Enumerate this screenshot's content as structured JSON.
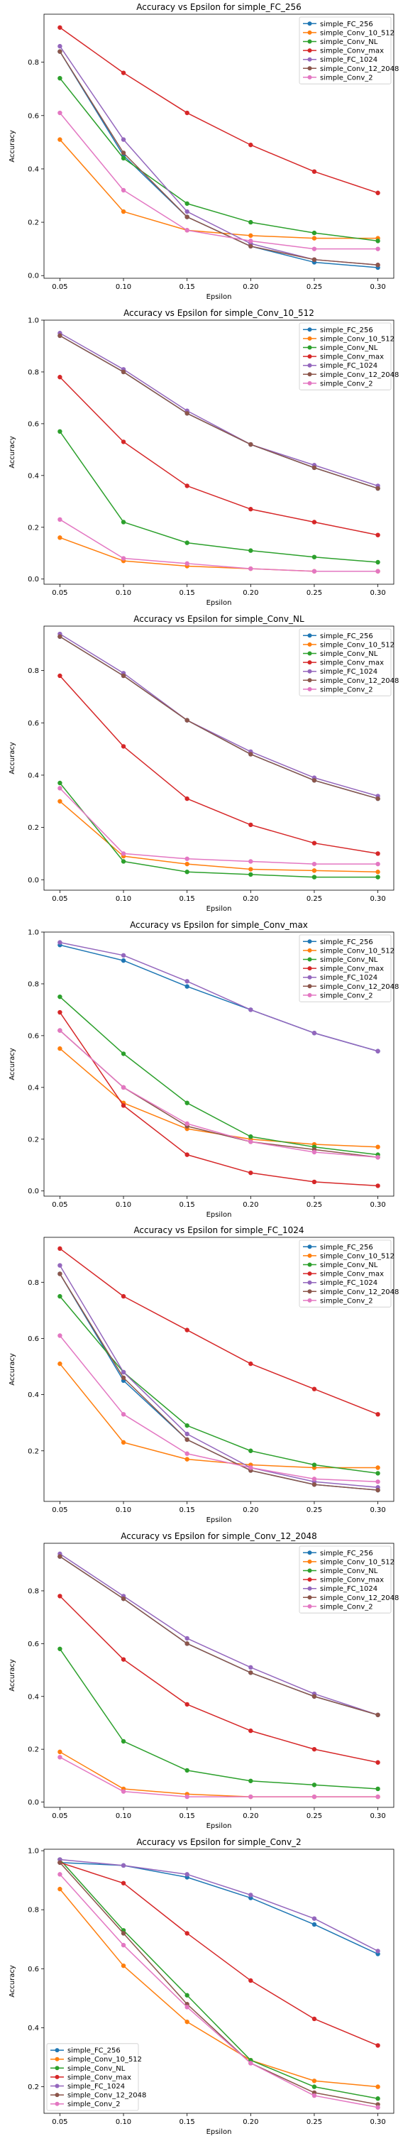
{
  "chart_data": [
    {
      "type": "line",
      "title": "Accuracy vs Epsilon for simple_FC_256",
      "xlabel": "Epsilon",
      "ylabel": "Accuracy",
      "x": [
        0.05,
        0.1,
        0.15,
        0.2,
        0.25,
        0.3
      ],
      "x_ticks": [
        "0.05",
        "0.10",
        "0.15",
        "0.20",
        "0.25",
        "0.30"
      ],
      "xlim": [
        0.0375,
        0.3125
      ],
      "ylim": [
        -0.01,
        0.98
      ],
      "y_ticks": [
        0.0,
        0.2,
        0.4,
        0.6,
        0.8
      ],
      "legend_position": "top-right",
      "grid": false,
      "series": [
        {
          "name": "simple_FC_256",
          "color": "#1f77b4",
          "values": [
            0.84,
            0.45,
            0.22,
            0.11,
            0.05,
            0.03
          ]
        },
        {
          "name": "simple_Conv_10_512",
          "color": "#ff7f0e",
          "values": [
            0.51,
            0.24,
            0.17,
            0.15,
            0.14,
            0.14
          ]
        },
        {
          "name": "simple_Conv_NL",
          "color": "#2ca02c",
          "values": [
            0.74,
            0.44,
            0.27,
            0.2,
            0.16,
            0.13
          ]
        },
        {
          "name": "simple_Conv_max",
          "color": "#d62728",
          "values": [
            0.93,
            0.76,
            0.61,
            0.49,
            0.39,
            0.31
          ]
        },
        {
          "name": "simple_FC_1024",
          "color": "#9467bd",
          "values": [
            0.86,
            0.51,
            0.24,
            0.12,
            0.06,
            0.04
          ]
        },
        {
          "name": "simple_Conv_12_2048",
          "color": "#8c564b",
          "values": [
            0.84,
            0.46,
            0.22,
            0.11,
            0.06,
            0.04
          ]
        },
        {
          "name": "simple_Conv_2",
          "color": "#e377c2",
          "values": [
            0.61,
            0.32,
            0.17,
            0.13,
            0.1,
            0.1
          ]
        }
      ]
    },
    {
      "type": "line",
      "title": "Accuracy vs Epsilon for simple_Conv_10_512",
      "xlabel": "Epsilon",
      "ylabel": "Accuracy",
      "x": [
        0.05,
        0.1,
        0.15,
        0.2,
        0.25,
        0.3
      ],
      "x_ticks": [
        "0.05",
        "0.10",
        "0.15",
        "0.20",
        "0.25",
        "0.30"
      ],
      "xlim": [
        0.0375,
        0.3125
      ],
      "ylim": [
        -0.02,
        1.0
      ],
      "y_ticks": [
        0.0,
        0.2,
        0.4,
        0.6,
        0.8,
        1.0
      ],
      "legend_position": "top-right",
      "grid": false,
      "series": [
        {
          "name": "simple_FC_256",
          "color": "#1f77b4",
          "values": [
            0.94,
            0.8,
            0.64,
            0.52,
            0.43,
            0.35
          ]
        },
        {
          "name": "simple_Conv_10_512",
          "color": "#ff7f0e",
          "values": [
            0.16,
            0.07,
            0.05,
            0.04,
            0.03,
            0.03
          ]
        },
        {
          "name": "simple_Conv_NL",
          "color": "#2ca02c",
          "values": [
            0.57,
            0.22,
            0.14,
            0.11,
            0.085,
            0.065
          ]
        },
        {
          "name": "simple_Conv_max",
          "color": "#d62728",
          "values": [
            0.78,
            0.53,
            0.36,
            0.27,
            0.22,
            0.17
          ]
        },
        {
          "name": "simple_FC_1024",
          "color": "#9467bd",
          "values": [
            0.95,
            0.81,
            0.65,
            0.52,
            0.44,
            0.36
          ]
        },
        {
          "name": "simple_Conv_12_2048",
          "color": "#8c564b",
          "values": [
            0.94,
            0.8,
            0.64,
            0.52,
            0.43,
            0.35
          ]
        },
        {
          "name": "simple_Conv_2",
          "color": "#e377c2",
          "values": [
            0.23,
            0.08,
            0.06,
            0.04,
            0.03,
            0.03
          ]
        }
      ]
    },
    {
      "type": "line",
      "title": "Accuracy vs Epsilon for simple_Conv_NL",
      "xlabel": "Epsilon",
      "ylabel": "Accuracy",
      "x": [
        0.05,
        0.1,
        0.15,
        0.2,
        0.25,
        0.3
      ],
      "x_ticks": [
        "0.05",
        "0.10",
        "0.15",
        "0.20",
        "0.25",
        "0.30"
      ],
      "xlim": [
        0.0375,
        0.3125
      ],
      "ylim": [
        -0.04,
        0.97
      ],
      "y_ticks": [
        0.0,
        0.2,
        0.4,
        0.6,
        0.8
      ],
      "legend_position": "top-right",
      "grid": false,
      "series": [
        {
          "name": "simple_FC_256",
          "color": "#1f77b4",
          "values": [
            0.93,
            0.78,
            0.61,
            0.48,
            0.38,
            0.31
          ]
        },
        {
          "name": "simple_Conv_10_512",
          "color": "#ff7f0e",
          "values": [
            0.3,
            0.09,
            0.06,
            0.04,
            0.035,
            0.03
          ]
        },
        {
          "name": "simple_Conv_NL",
          "color": "#2ca02c",
          "values": [
            0.37,
            0.07,
            0.03,
            0.02,
            0.01,
            0.01
          ]
        },
        {
          "name": "simple_Conv_max",
          "color": "#d62728",
          "values": [
            0.78,
            0.51,
            0.31,
            0.21,
            0.14,
            0.1
          ]
        },
        {
          "name": "simple_FC_1024",
          "color": "#9467bd",
          "values": [
            0.94,
            0.79,
            0.61,
            0.49,
            0.39,
            0.32
          ]
        },
        {
          "name": "simple_Conv_12_2048",
          "color": "#8c564b",
          "values": [
            0.93,
            0.78,
            0.61,
            0.48,
            0.38,
            0.31
          ]
        },
        {
          "name": "simple_Conv_2",
          "color": "#e377c2",
          "values": [
            0.35,
            0.1,
            0.08,
            0.07,
            0.06,
            0.06
          ]
        }
      ]
    },
    {
      "type": "line",
      "title": "Accuracy vs Epsilon for simple_Conv_max",
      "xlabel": "Epsilon",
      "ylabel": "Accuracy",
      "x": [
        0.05,
        0.1,
        0.15,
        0.2,
        0.25,
        0.3
      ],
      "x_ticks": [
        "0.05",
        "0.10",
        "0.15",
        "0.20",
        "0.25",
        "0.30"
      ],
      "xlim": [
        0.0375,
        0.3125
      ],
      "ylim": [
        -0.02,
        1.0
      ],
      "y_ticks": [
        0.0,
        0.2,
        0.4,
        0.6,
        0.8,
        1.0
      ],
      "legend_position": "top-right",
      "grid": false,
      "series": [
        {
          "name": "simple_FC_256",
          "color": "#1f77b4",
          "values": [
            0.95,
            0.89,
            0.79,
            0.7,
            0.61,
            0.54
          ]
        },
        {
          "name": "simple_Conv_10_512",
          "color": "#ff7f0e",
          "values": [
            0.55,
            0.34,
            0.24,
            0.2,
            0.18,
            0.17
          ]
        },
        {
          "name": "simple_Conv_NL",
          "color": "#2ca02c",
          "values": [
            0.75,
            0.53,
            0.34,
            0.21,
            0.17,
            0.14
          ]
        },
        {
          "name": "simple_Conv_max",
          "color": "#d62728",
          "values": [
            0.69,
            0.33,
            0.14,
            0.07,
            0.035,
            0.02
          ]
        },
        {
          "name": "simple_FC_1024",
          "color": "#9467bd",
          "values": [
            0.96,
            0.91,
            0.81,
            0.7,
            0.61,
            0.54
          ]
        },
        {
          "name": "simple_Conv_12_2048",
          "color": "#8c564b",
          "values": [
            0.62,
            0.4,
            0.25,
            0.19,
            0.16,
            0.13
          ]
        },
        {
          "name": "simple_Conv_2",
          "color": "#e377c2",
          "values": [
            0.62,
            0.4,
            0.26,
            0.19,
            0.15,
            0.13
          ]
        }
      ]
    },
    {
      "type": "line",
      "title": "Accuracy vs Epsilon for simple_FC_1024",
      "xlabel": "Epsilon",
      "ylabel": "Accuracy",
      "x": [
        0.05,
        0.1,
        0.15,
        0.2,
        0.25,
        0.3
      ],
      "x_ticks": [
        "0.05",
        "0.10",
        "0.15",
        "0.20",
        "0.25",
        "0.30"
      ],
      "xlim": [
        0.0375,
        0.3125
      ],
      "ylim": [
        0.02,
        0.96
      ],
      "y_ticks": [
        0.2,
        0.4,
        0.6,
        0.8
      ],
      "legend_position": "top-right",
      "grid": false,
      "series": [
        {
          "name": "simple_FC_256",
          "color": "#1f77b4",
          "values": [
            0.83,
            0.45,
            0.24,
            0.13,
            0.08,
            0.06
          ]
        },
        {
          "name": "simple_Conv_10_512",
          "color": "#ff7f0e",
          "values": [
            0.51,
            0.23,
            0.17,
            0.15,
            0.14,
            0.14
          ]
        },
        {
          "name": "simple_Conv_NL",
          "color": "#2ca02c",
          "values": [
            0.75,
            0.48,
            0.29,
            0.2,
            0.15,
            0.12
          ]
        },
        {
          "name": "simple_Conv_max",
          "color": "#d62728",
          "values": [
            0.92,
            0.75,
            0.63,
            0.51,
            0.42,
            0.33
          ]
        },
        {
          "name": "simple_FC_1024",
          "color": "#9467bd",
          "values": [
            0.86,
            0.48,
            0.26,
            0.14,
            0.09,
            0.07
          ]
        },
        {
          "name": "simple_Conv_12_2048",
          "color": "#8c564b",
          "values": [
            0.83,
            0.46,
            0.24,
            0.13,
            0.08,
            0.06
          ]
        },
        {
          "name": "simple_Conv_2",
          "color": "#e377c2",
          "values": [
            0.61,
            0.33,
            0.19,
            0.14,
            0.1,
            0.09
          ]
        }
      ]
    },
    {
      "type": "line",
      "title": "Accuracy vs Epsilon for simple_Conv_12_2048",
      "xlabel": "Epsilon",
      "ylabel": "Accuracy",
      "x": [
        0.05,
        0.1,
        0.15,
        0.2,
        0.25,
        0.3
      ],
      "x_ticks": [
        "0.05",
        "0.10",
        "0.15",
        "0.20",
        "0.25",
        "0.30"
      ],
      "xlim": [
        0.0375,
        0.3125
      ],
      "ylim": [
        -0.02,
        0.98
      ],
      "y_ticks": [
        0.0,
        0.2,
        0.4,
        0.6,
        0.8
      ],
      "legend_position": "top-right",
      "grid": false,
      "series": [
        {
          "name": "simple_FC_256",
          "color": "#1f77b4",
          "values": [
            0.93,
            0.77,
            0.6,
            0.49,
            0.4,
            0.33
          ]
        },
        {
          "name": "simple_Conv_10_512",
          "color": "#ff7f0e",
          "values": [
            0.19,
            0.05,
            0.03,
            0.02,
            0.02,
            0.02
          ]
        },
        {
          "name": "simple_Conv_NL",
          "color": "#2ca02c",
          "values": [
            0.58,
            0.23,
            0.12,
            0.08,
            0.065,
            0.05
          ]
        },
        {
          "name": "simple_Conv_max",
          "color": "#d62728",
          "values": [
            0.78,
            0.54,
            0.37,
            0.27,
            0.2,
            0.15
          ]
        },
        {
          "name": "simple_FC_1024",
          "color": "#9467bd",
          "values": [
            0.94,
            0.78,
            0.62,
            0.51,
            0.41,
            0.33
          ]
        },
        {
          "name": "simple_Conv_12_2048",
          "color": "#8c564b",
          "values": [
            0.93,
            0.77,
            0.6,
            0.49,
            0.4,
            0.33
          ]
        },
        {
          "name": "simple_Conv_2",
          "color": "#e377c2",
          "values": [
            0.17,
            0.04,
            0.02,
            0.02,
            0.02,
            0.02
          ]
        }
      ]
    },
    {
      "type": "line",
      "title": "Accuracy vs Epsilon for simple_Conv_2",
      "xlabel": "Epsilon",
      "ylabel": "Accuracy",
      "x": [
        0.05,
        0.1,
        0.15,
        0.2,
        0.25,
        0.3
      ],
      "x_ticks": [
        "0.05",
        "0.10",
        "0.15",
        "0.20",
        "0.25",
        "0.30"
      ],
      "xlim": [
        0.0375,
        0.3125
      ],
      "ylim": [
        0.11,
        1.005
      ],
      "y_ticks": [
        0.2,
        0.4,
        0.6,
        0.8,
        1.0
      ],
      "legend_position": "bottom-left",
      "grid": false,
      "series": [
        {
          "name": "simple_FC_256",
          "color": "#1f77b4",
          "values": [
            0.96,
            0.95,
            0.91,
            0.84,
            0.75,
            0.65
          ]
        },
        {
          "name": "simple_Conv_10_512",
          "color": "#ff7f0e",
          "values": [
            0.87,
            0.61,
            0.42,
            0.29,
            0.22,
            0.2
          ]
        },
        {
          "name": "simple_Conv_NL",
          "color": "#2ca02c",
          "values": [
            0.97,
            0.73,
            0.51,
            0.29,
            0.2,
            0.16
          ]
        },
        {
          "name": "simple_Conv_max",
          "color": "#d62728",
          "values": [
            0.96,
            0.89,
            0.72,
            0.56,
            0.43,
            0.34
          ]
        },
        {
          "name": "simple_FC_1024",
          "color": "#9467bd",
          "values": [
            0.97,
            0.95,
            0.92,
            0.85,
            0.77,
            0.66
          ]
        },
        {
          "name": "simple_Conv_12_2048",
          "color": "#8c564b",
          "values": [
            0.96,
            0.72,
            0.48,
            0.28,
            0.18,
            0.14
          ]
        },
        {
          "name": "simple_Conv_2",
          "color": "#e377c2",
          "values": [
            0.92,
            0.68,
            0.47,
            0.28,
            0.17,
            0.13
          ]
        }
      ]
    }
  ]
}
